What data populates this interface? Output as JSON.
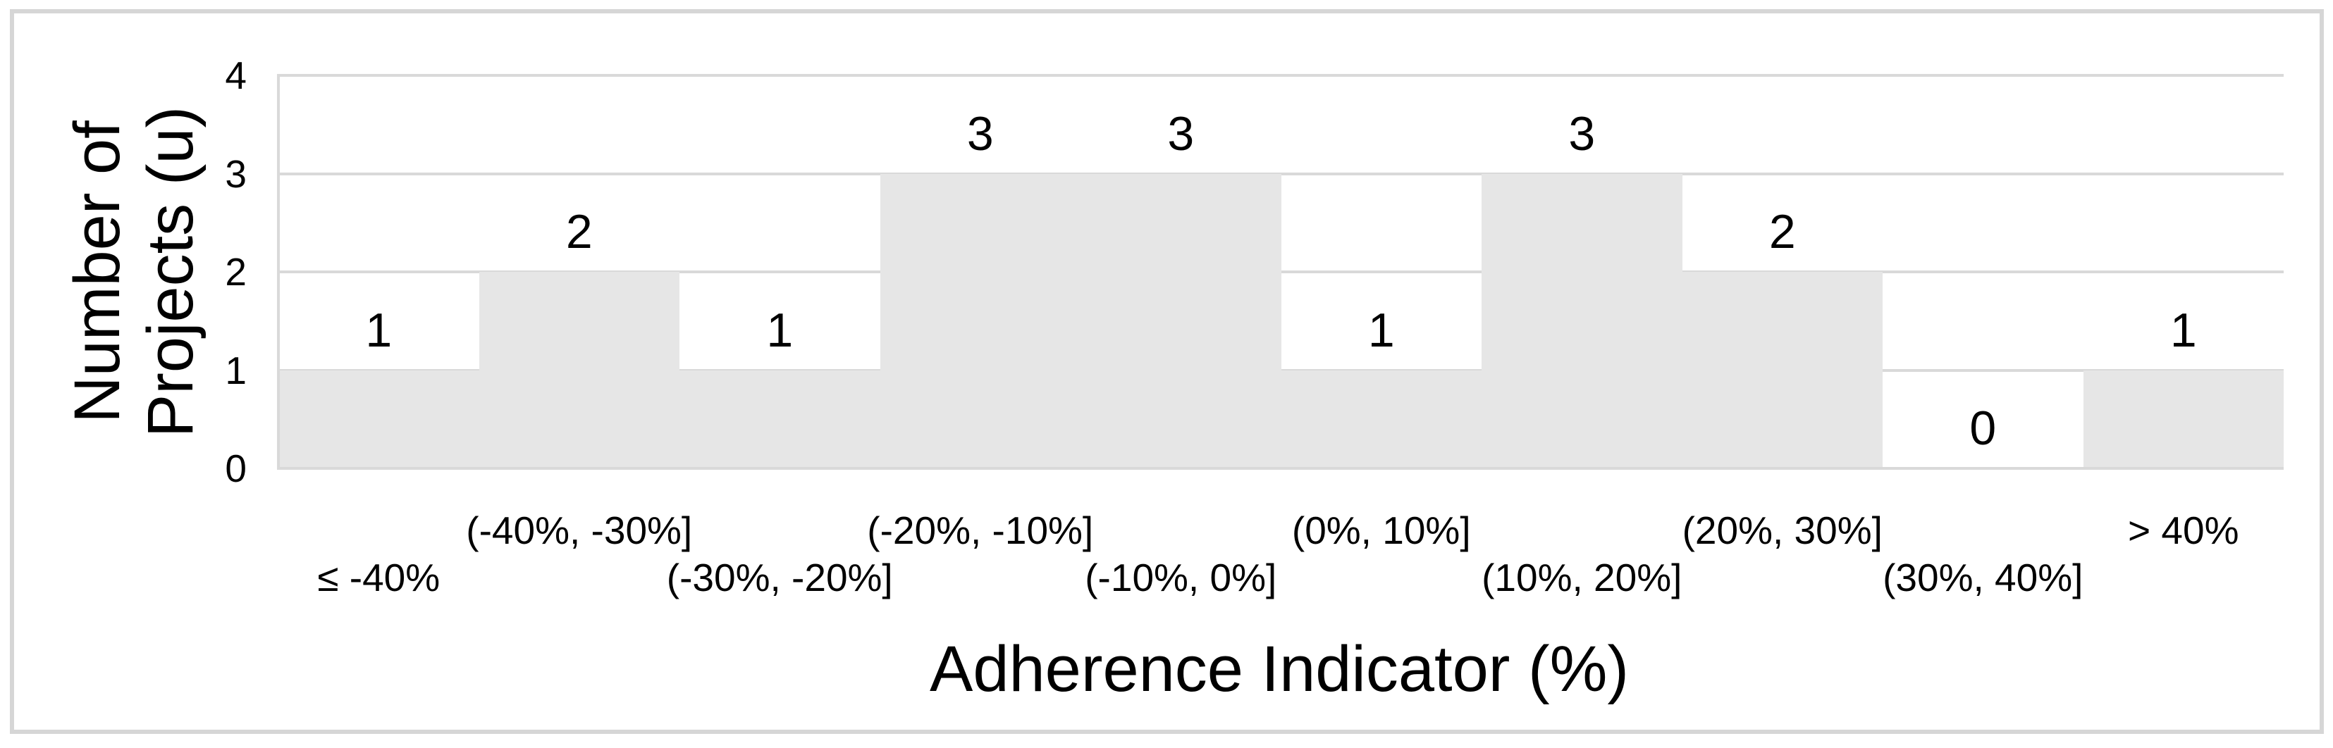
{
  "figure": {
    "background": "#ffffff",
    "frame_color": "#d6d6d6"
  },
  "chart_data": {
    "type": "bar",
    "title": "",
    "xlabel": "Adherence Indicator (%)",
    "ylabel": "Number of Projects (u)",
    "ylabel_lines": [
      "Number of",
      "Projects (u)"
    ],
    "categories": [
      "≤ -40%",
      "(-40%, -30%]",
      "(-30%, -20%]",
      "(-20%, -10%]",
      "(-10%, 0%]",
      "(0%, 10%]",
      "(10%, 20%]",
      "(20%, 30%]",
      "(30%, 40%]",
      "> 40%"
    ],
    "values": [
      1,
      2,
      1,
      3,
      3,
      1,
      3,
      2,
      0,
      1
    ],
    "data_labels": [
      "1",
      "2",
      "1",
      "3",
      "3",
      "1",
      "3",
      "2",
      "0",
      "1"
    ],
    "yticks": [
      "0",
      "1",
      "2",
      "3",
      "4"
    ],
    "ylim": [
      0,
      4
    ],
    "bar_color": "#e6e6e6",
    "gridline_color": "#d9d9d9",
    "grid": true,
    "legend": false,
    "bar_gap": 0,
    "label_position": "outside-end",
    "xtick_stagger": true
  }
}
